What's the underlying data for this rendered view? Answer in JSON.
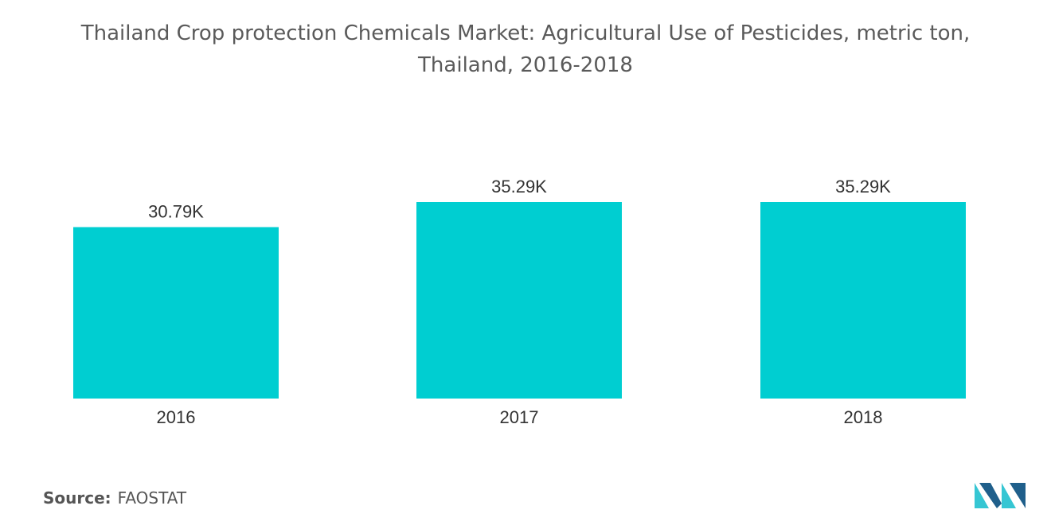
{
  "title_line1": "Thailand Crop protection Chemicals Market: Agricultural Use of Pesticides, metric ton,",
  "title_line2": "Thailand, 2016-2018",
  "source_label": "Source:",
  "source_value": "FAOSTAT",
  "logo_name": "mordor-intelligence-logo-icon",
  "colors": {
    "bar": "#00CED1",
    "logo_dark": "#1f5f8b",
    "logo_light": "#36c6d3"
  },
  "chart_data": {
    "type": "bar",
    "title": "Thailand Crop protection Chemicals Market: Agricultural Use of Pesticides, metric ton, Thailand, 2016-2018",
    "categories": [
      "2016",
      "2017",
      "2018"
    ],
    "values": [
      30790,
      35290,
      35290
    ],
    "data_labels": [
      "30.79K",
      "35.29K",
      "35.29K"
    ],
    "xlabel": "",
    "ylabel": "",
    "ylim": [
      0,
      35290
    ],
    "grid": false,
    "legend": "none"
  }
}
